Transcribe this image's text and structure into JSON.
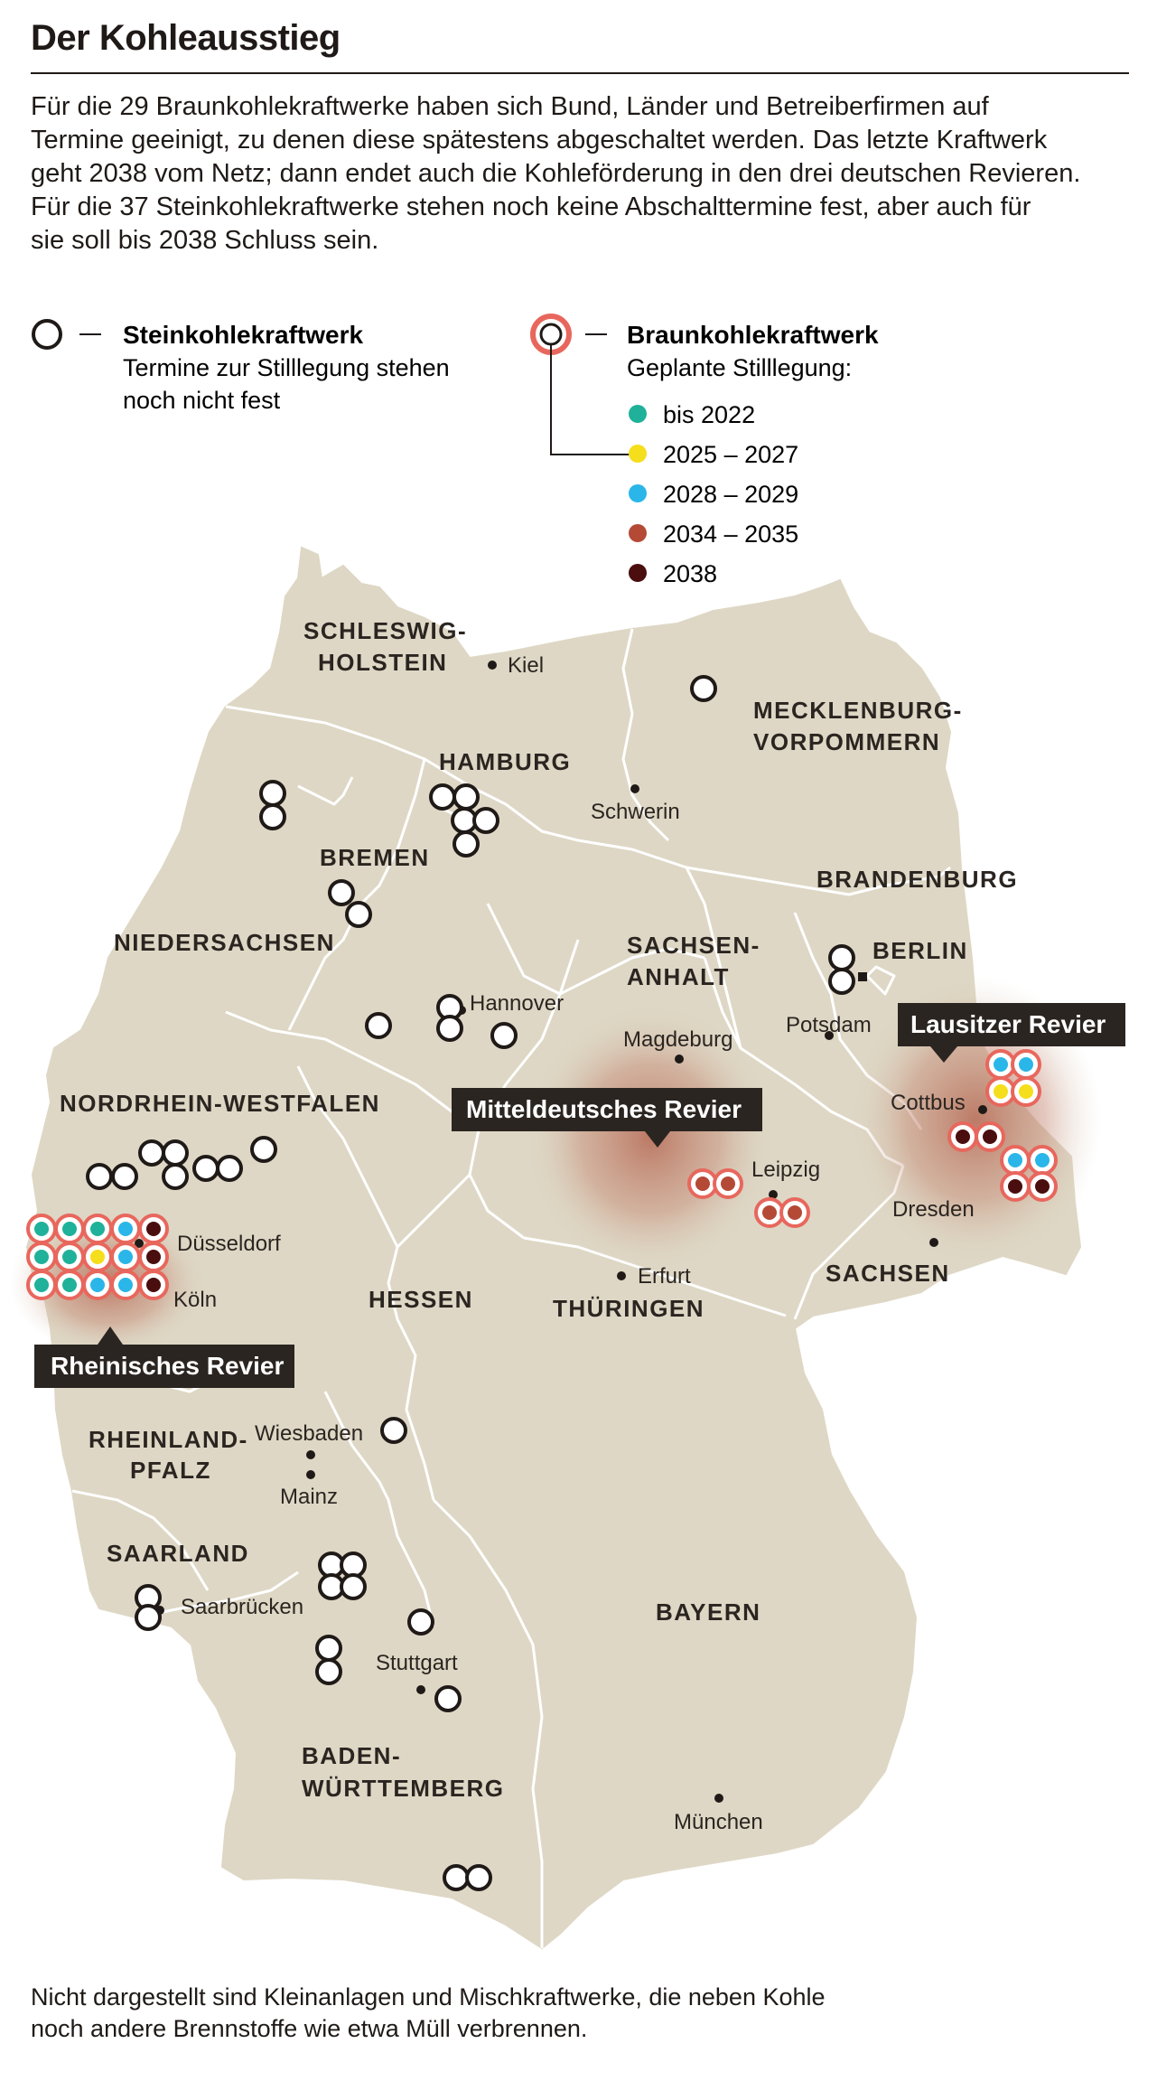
{
  "title": "Der Kohleausstieg",
  "intro": [
    "Für die 29 Braunkohlekraftwerke haben sich Bund, Länder und Betreiberfirmen auf",
    "Termine geeinigt, zu denen diese spätestens abgeschaltet werden. Das letzte Kraftwerk",
    "geht 2038 vom Netz; dann endet auch die Kohleförderung in den drei deutschen Revieren.",
    "Für die 37 Steinkohlekraftwerke stehen noch keine Abschalttermine fest, aber auch für",
    "sie soll bis 2038 Schluss sein."
  ],
  "legend": {
    "stein": {
      "title": "Steinkohlekraftwerk",
      "sub": [
        "Termine zur Stilllegung stehen",
        "noch nicht fest"
      ]
    },
    "braun": {
      "title": "Braunkohlekraftwerk",
      "sub": "Geplante Stilllegung:",
      "items": [
        {
          "label": "bis 2022",
          "color": "#1fb19a"
        },
        {
          "label": "2025 – 2027",
          "color": "#f5de1b"
        },
        {
          "label": "2028 – 2029",
          "color": "#2ab6e8"
        },
        {
          "label": "2034 – 2035",
          "color": "#b44a36"
        },
        {
          "label": "2038",
          "color": "#4a0e0e"
        }
      ]
    }
  },
  "states": [
    {
      "lines": [
        "SCHLESWIG-",
        "HOLSTEIN"
      ]
    },
    {
      "lines": [
        "MECKLENBURG-",
        "VORPOMMERN"
      ]
    },
    {
      "lines": [
        "HAMBURG"
      ]
    },
    {
      "lines": [
        "BREMEN"
      ]
    },
    {
      "lines": [
        "NIEDERSACHSEN"
      ]
    },
    {
      "lines": [
        "BRANDENBURG"
      ]
    },
    {
      "lines": [
        "BERLIN"
      ]
    },
    {
      "lines": [
        "SACHSEN-",
        "ANHALT"
      ]
    },
    {
      "lines": [
        "NORDRHEIN-WESTFALEN"
      ]
    },
    {
      "lines": [
        "HESSEN"
      ]
    },
    {
      "lines": [
        "THÜRINGEN"
      ]
    },
    {
      "lines": [
        "SACHSEN"
      ]
    },
    {
      "lines": [
        "RHEINLAND-",
        "PFALZ"
      ]
    },
    {
      "lines": [
        "SAARLAND"
      ]
    },
    {
      "lines": [
        "BAYERN"
      ]
    },
    {
      "lines": [
        "BADEN-",
        "WÜRTTEMBERG"
      ]
    }
  ],
  "cities": [
    "Kiel",
    "Schwerin",
    "Hannover",
    "Magdeburg",
    "Potsdam",
    "Cottbus",
    "Leipzig",
    "Dresden",
    "Erfurt",
    "Düsseldorf",
    "Köln",
    "Wiesbaden",
    "Mainz",
    "Saarbrücken",
    "Stuttgart",
    "München"
  ],
  "reviere": [
    "Lausitzer Revier",
    "Mitteldeutsches Revier",
    "Rheinisches Revier"
  ],
  "counts": {
    "steinkohle": 37,
    "braunkohle": 29
  },
  "footer": [
    "Nicht dargestellt sind Kleinanlagen und Mischkraftwerke, die neben Kohle",
    "noch andere Brennstoffe wie etwa Müll verbrennen."
  ],
  "colors": {
    "land": "#ded7c5",
    "border": "#ffffff",
    "ring_braun": "#e8675d",
    "ink": "#1f1a17",
    "revier_glow": "#b66a55"
  }
}
